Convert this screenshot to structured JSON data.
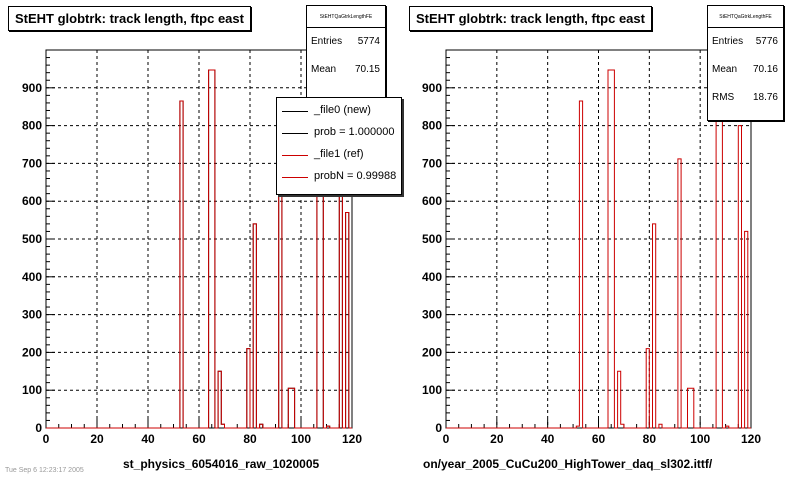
{
  "colors": {
    "current": "#000000",
    "reference": "#cc0000",
    "grid": "#000000",
    "background": "#ffffff"
  },
  "chart_data": [
    {
      "type": "bar",
      "title": "StEHT globtrk: track length, ftpc east",
      "xlabel": "st_physics_6054016_raw_1020005",
      "ylabel": "",
      "xlim": [
        0,
        120
      ],
      "ylim": [
        0,
        1000
      ],
      "x_ticks": [
        0,
        20,
        40,
        60,
        80,
        100,
        120
      ],
      "y_ticks": [
        0,
        100,
        200,
        300,
        400,
        500,
        600,
        700,
        800,
        900
      ],
      "grid": true,
      "stats": {
        "name": "StEHTQaGtrkLengthFE",
        "entries_label": "Entries",
        "entries": "5774",
        "mean_label": "Mean",
        "mean": "70.15"
      },
      "legend": {
        "placement": "top-right",
        "entries": [
          "_file0 (new)",
          "prob = 1.000000",
          "_file1 (ref)",
          "probN = 0.99988"
        ]
      },
      "bin_edges_start": 0,
      "bin_width": 1.25,
      "series": [
        {
          "name": "_file0 (new)",
          "color": "#000000",
          "bins": [
            [
              42,
              43,
              865
            ],
            [
              51,
              53,
              947
            ],
            [
              54,
              55,
              150
            ],
            [
              55,
              56,
              10
            ],
            [
              63,
              64,
              210
            ],
            [
              65,
              66,
              540
            ],
            [
              67,
              68,
              10
            ],
            [
              73,
              74,
              712
            ],
            [
              76,
              77,
              105
            ],
            [
              77,
              78,
              105
            ],
            [
              85,
              86,
              857
            ],
            [
              86,
              87,
              857
            ],
            [
              88,
              89,
              5
            ],
            [
              92,
              93,
              620
            ],
            [
              94,
              95,
              570
            ]
          ]
        },
        {
          "name": "_file1 (ref)",
          "color": "#cc0000",
          "bins": [
            [
              42,
              43,
              865
            ],
            [
              51,
              53,
              947
            ],
            [
              54,
              55,
              150
            ],
            [
              55,
              56,
              10
            ],
            [
              63,
              64,
              210
            ],
            [
              65,
              66,
              540
            ],
            [
              67,
              68,
              10
            ],
            [
              73,
              74,
              712
            ],
            [
              76,
              77,
              105
            ],
            [
              77,
              78,
              105
            ],
            [
              85,
              86,
              857
            ],
            [
              86,
              87,
              857
            ],
            [
              88,
              89,
              5
            ],
            [
              92,
              93,
              620
            ],
            [
              94,
              95,
              570
            ]
          ]
        }
      ]
    },
    {
      "type": "bar",
      "title": "StEHT globtrk: track length, ftpc east",
      "xlabel": "on/year_2005_CuCu200_HighTower_daq_sl302.ittf/",
      "ylabel": "",
      "xlim": [
        0,
        120
      ],
      "ylim": [
        0,
        1000
      ],
      "x_ticks": [
        0,
        20,
        40,
        60,
        80,
        100,
        120
      ],
      "y_ticks": [
        0,
        100,
        200,
        300,
        400,
        500,
        600,
        700,
        800,
        900
      ],
      "grid": true,
      "stats": {
        "name": "StEHTQaGtrkLengthFE",
        "entries_label": "Entries",
        "entries": "5776",
        "mean_label": "Mean",
        "mean": "70.16",
        "rms_label": "RMS",
        "rms": "18.76"
      },
      "bin_width": 1.25,
      "series": [
        {
          "name": "_file1 (ref)",
          "color": "#cc0000",
          "bins": [
            [
              41,
              42,
              5
            ],
            [
              42,
              43,
              865
            ],
            [
              51,
              53,
              947
            ],
            [
              54,
              55,
              150
            ],
            [
              55,
              56,
              10
            ],
            [
              63,
              64,
              210
            ],
            [
              65,
              66,
              540
            ],
            [
              67,
              68,
              10
            ],
            [
              73,
              74,
              712
            ],
            [
              76,
              77,
              105
            ],
            [
              77,
              78,
              105
            ],
            [
              85,
              86,
              857
            ],
            [
              86,
              87,
              857
            ],
            [
              88,
              89,
              5
            ],
            [
              92,
              93,
              800
            ],
            [
              94,
              95,
              520
            ]
          ]
        }
      ]
    }
  ],
  "footnote": "Tue Sep 6 12:23:17 2005"
}
